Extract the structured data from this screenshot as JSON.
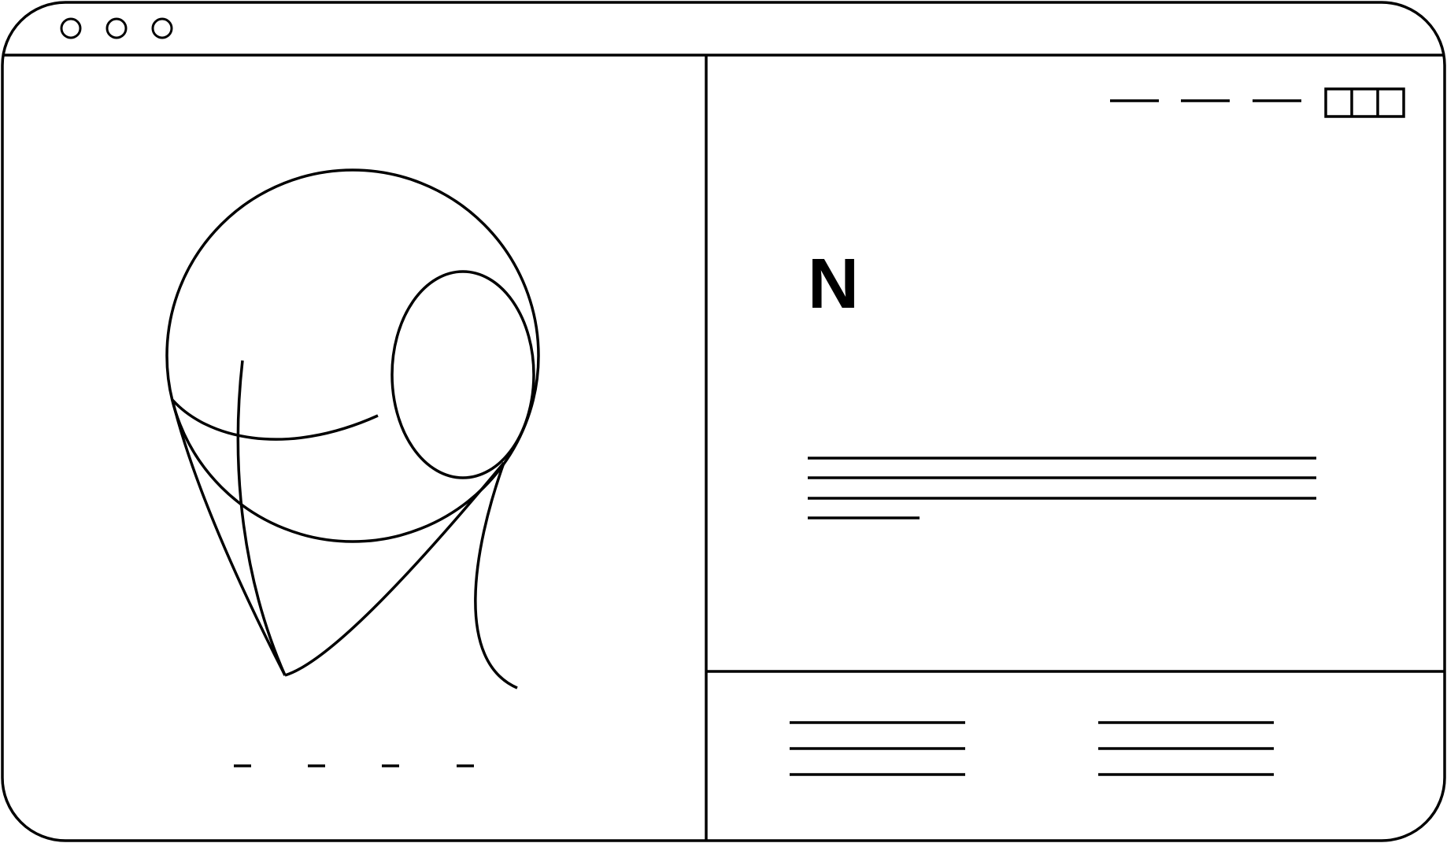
{
  "app": {
    "logo_letter": "N",
    "window_controls": [
      "window-control",
      "window-control",
      "window-control"
    ]
  },
  "colors": {
    "stroke": "#000000",
    "background": "#ffffff"
  },
  "left_panel": {
    "illustration": "wireframe-head-illustration",
    "carousel_dots": 4
  },
  "right_panel": {
    "nav_items": 3,
    "grid_cells": 3,
    "text_lines": 4,
    "footer_columns": 2,
    "footer_lines_per_column": 3
  }
}
